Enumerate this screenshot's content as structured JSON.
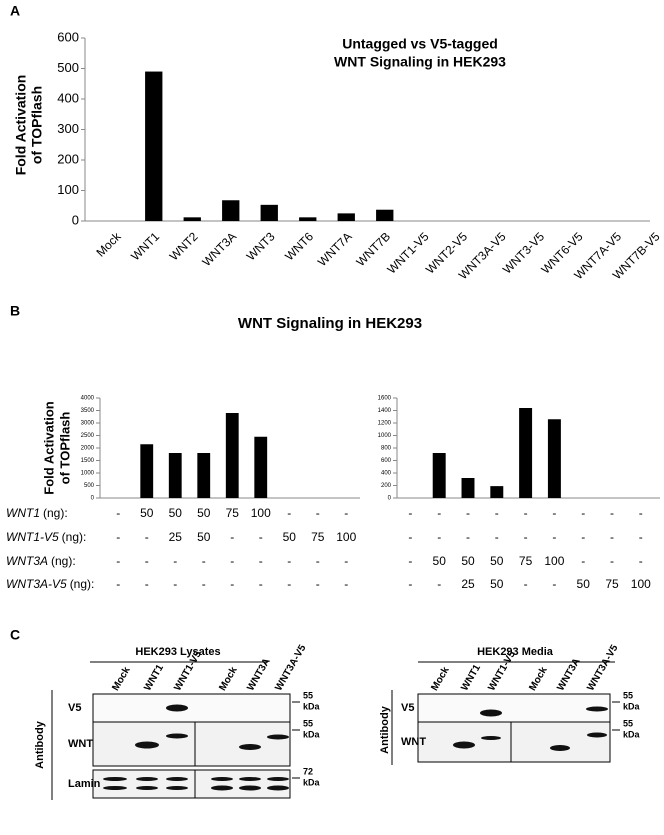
{
  "chart_data": [
    {
      "type": "bar",
      "title": [
        "Untagged vs V5-tagged",
        "WNT Signaling in HEK293"
      ],
      "y_label": [
        "Fold Activation",
        "of TOPflash"
      ],
      "categories": [
        "Mock",
        "WNT1",
        "WNT2",
        "WNT3A",
        "WNT3",
        "WNT6",
        "WNT7A",
        "WNT7B",
        "WNT1-V5",
        "WNT2-V5",
        "WNT3A-V5",
        "WNT3-V5",
        "WNT6-V5",
        "WNT7A-V5",
        "WNT7B-V5"
      ],
      "values": [
        0,
        490,
        12,
        68,
        53,
        12,
        25,
        37,
        0,
        0,
        0,
        0,
        0,
        0,
        0
      ],
      "color": "#000000",
      "ylim": [
        0,
        600
      ],
      "yticks": [
        0,
        100,
        200,
        300,
        400,
        500,
        600
      ]
    },
    {
      "type": "bar",
      "y_label": [
        "Fold Activation",
        "of TOPflash"
      ],
      "categories": [
        null,
        null,
        null,
        null,
        null,
        null,
        null,
        null,
        null
      ],
      "values": [
        0,
        2150,
        1800,
        1800,
        3400,
        2450,
        0,
        0,
        0
      ],
      "color": "#000000",
      "ylim": [
        0,
        4000
      ],
      "yticks": [
        0,
        500,
        1000,
        1500,
        2000,
        2500,
        3000,
        3500,
        4000
      ]
    },
    {
      "type": "bar",
      "categories": [
        null,
        null,
        null,
        null,
        null,
        null,
        null,
        null,
        null
      ],
      "values": [
        0,
        720,
        320,
        190,
        1440,
        1260,
        0,
        0,
        0
      ],
      "color": "#000000",
      "ylim": [
        0,
        1600
      ],
      "yticks": [
        0,
        200,
        400,
        600,
        800,
        1000,
        1200,
        1400,
        1600
      ]
    }
  ],
  "panel_labels": [
    "A",
    "B",
    "C"
  ],
  "panel_b": {
    "title": "WNT Signaling in HEK293",
    "rows": [
      {
        "gene": "WNT1",
        "unit": "(ng):",
        "left": [
          "-",
          "50",
          "50",
          "50",
          "75",
          "100",
          "-",
          "-",
          "-"
        ],
        "right": [
          "-",
          "-",
          "-",
          "-",
          "-",
          "-",
          "-",
          "-",
          "-"
        ]
      },
      {
        "gene": "WNT1-V5",
        "unit": "(ng):",
        "left": [
          "-",
          "-",
          "25",
          "50",
          "-",
          "-",
          "50",
          "75",
          "100"
        ],
        "right": [
          "-",
          "-",
          "-",
          "-",
          "-",
          "-",
          "-",
          "-",
          "-"
        ]
      },
      {
        "gene": "WNT3A",
        "unit": "(ng):",
        "left": [
          "-",
          "-",
          "-",
          "-",
          "-",
          "-",
          "-",
          "-",
          "-"
        ],
        "right": [
          "-",
          "50",
          "50",
          "50",
          "75",
          "100",
          "-",
          "-",
          "-"
        ]
      },
      {
        "gene": "WNT3A-V5",
        "unit": "(ng):",
        "left": [
          "-",
          "-",
          "-",
          "-",
          "-",
          "-",
          "-",
          "-",
          "-"
        ],
        "right": [
          "-",
          "-",
          "25",
          "50",
          "-",
          "-",
          "50",
          "75",
          "100"
        ]
      }
    ]
  },
  "panel_c": {
    "antibody_label": "Antibody",
    "lysates": {
      "title": "HEK293 Lysates",
      "lanes": [
        "Mock",
        "WNT1",
        "WNT1-V5",
        "Mock",
        "WNT3A",
        "WNT3A-V5"
      ],
      "rows": [
        "V5",
        "WNT",
        "Lamin"
      ],
      "markers": [
        [
          "55",
          "kDa"
        ],
        [
          "55",
          "kDa"
        ],
        [
          "72",
          "kDa"
        ]
      ]
    },
    "media": {
      "title": "HEK293 Media",
      "lanes": [
        "Mock",
        "WNT1",
        "WNT1-V5",
        "Mock",
        "WNT3A",
        "WNT3A-V5"
      ],
      "rows": [
        "V5",
        "WNT"
      ],
      "markers": [
        [
          "55",
          "kDa"
        ],
        [
          "55",
          "kDa"
        ]
      ]
    }
  }
}
